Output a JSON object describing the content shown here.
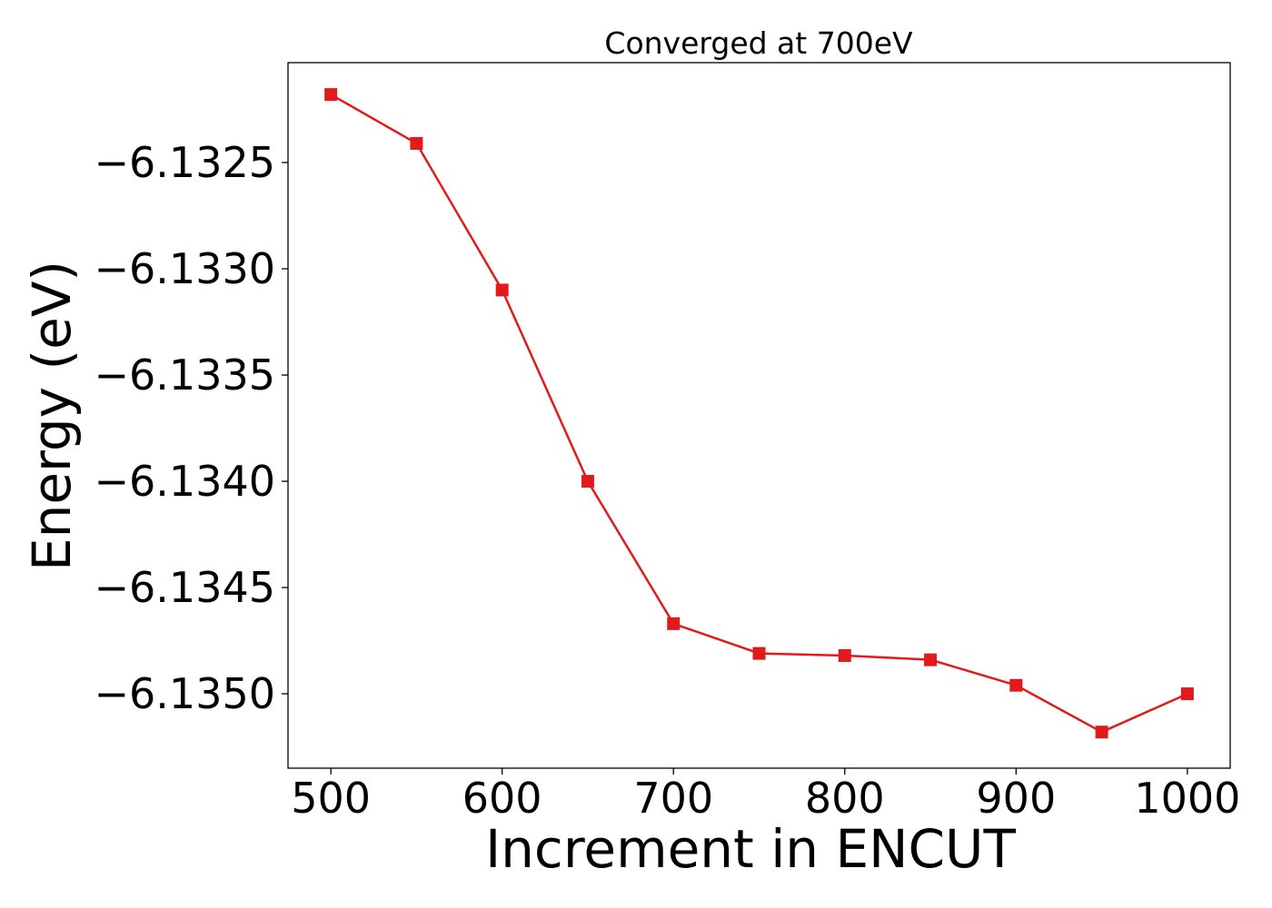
{
  "chart_data": {
    "type": "line",
    "title": "Converged at 700eV",
    "xlabel": "Increment in ENCUT",
    "ylabel": "Energy (eV)",
    "x": [
      500,
      550,
      600,
      650,
      700,
      750,
      800,
      850,
      900,
      950,
      1000
    ],
    "series": [
      {
        "values": [
          -6.13218,
          -6.13241,
          -6.1331,
          -6.134,
          -6.13467,
          -6.13481,
          -6.13482,
          -6.13484,
          -6.13496,
          -6.13518,
          -6.135
        ],
        "color": "#e31a1c",
        "marker": "square"
      }
    ],
    "xlim": [
      475,
      1025
    ],
    "ylim": [
      -6.13535,
      -6.13203
    ],
    "x_ticks": [
      500,
      600,
      700,
      800,
      900,
      1000
    ],
    "x_tick_labels": [
      "500",
      "600",
      "700",
      "800",
      "900",
      "1000"
    ],
    "y_ticks": [
      -6.1325,
      -6.133,
      -6.1335,
      -6.134,
      -6.1345,
      -6.135
    ],
    "y_tick_labels": [
      "−6.1325",
      "−6.1330",
      "−6.1335",
      "−6.1340",
      "−6.1345",
      "−6.1350"
    ],
    "grid": false,
    "legend": "none"
  }
}
